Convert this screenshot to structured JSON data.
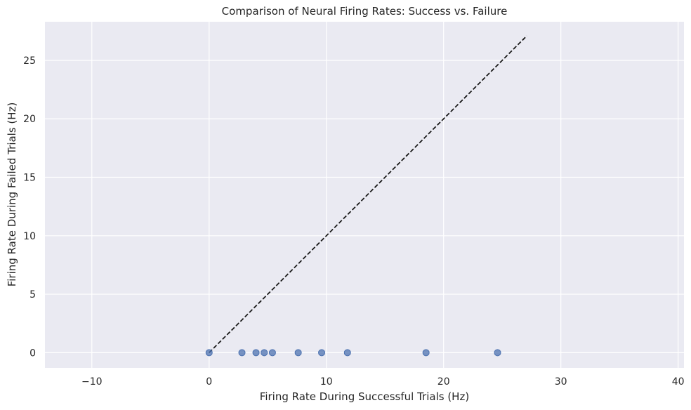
{
  "chart_data": {
    "type": "scatter",
    "title": "Comparison of Neural Firing Rates: Success vs. Failure",
    "xlabel": "Firing Rate During Successful Trials (Hz)",
    "ylabel": "Firing Rate During Failed Trials (Hz)",
    "xlim": [
      -14,
      40.5
    ],
    "ylim": [
      -1.3,
      28.3
    ],
    "xticks": [
      -10,
      0,
      10,
      20,
      30,
      40
    ],
    "yticks": [
      0,
      5,
      10,
      15,
      20,
      25
    ],
    "grid": true,
    "background": "#eaeaf2",
    "grid_color": "#ffffff",
    "series": [
      {
        "color": "#4c72b0",
        "points": [
          {
            "x": 0.0,
            "y": 0
          },
          {
            "x": 2.8,
            "y": 0
          },
          {
            "x": 4.0,
            "y": 0
          },
          {
            "x": 4.7,
            "y": 0
          },
          {
            "x": 5.4,
            "y": 0
          },
          {
            "x": 7.6,
            "y": 0
          },
          {
            "x": 9.6,
            "y": 0
          },
          {
            "x": 11.8,
            "y": 0
          },
          {
            "x": 18.5,
            "y": 0
          },
          {
            "x": 24.6,
            "y": 0
          }
        ]
      }
    ],
    "reference_line": {
      "style": "dashed",
      "color": "#1a1a1a",
      "from": [
        0,
        0
      ],
      "to": [
        27.1,
        27.1
      ]
    }
  }
}
